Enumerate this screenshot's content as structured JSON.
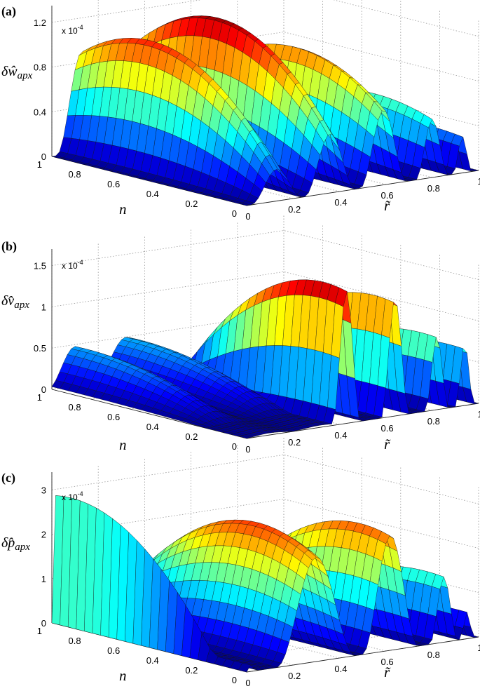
{
  "colormap": [
    "#00008f",
    "#0000ff",
    "#0080ff",
    "#00ffff",
    "#80ff80",
    "#ffff00",
    "#ff8000",
    "#ff0000",
    "#800000"
  ],
  "chart_data": [
    {
      "panel_label": "(a)",
      "type": "surface",
      "multiplier": "x 10",
      "multiplier_exp": "-4",
      "zlabel": "δŵ",
      "zlabel_sub": "apx",
      "xlabel": "r̃",
      "ylabel": "n",
      "xlim": [
        0,
        1
      ],
      "ylim": [
        0,
        1
      ],
      "zlim": [
        0,
        1.35
      ],
      "xticks": [
        "0",
        "0.2",
        "0.4",
        "0.6",
        "0.8",
        "1"
      ],
      "yticks": [
        "0",
        "0.2",
        "0.4",
        "0.6",
        "0.8",
        "1"
      ],
      "zticks": [
        "0",
        "0.4",
        "0.8",
        "1.2"
      ],
      "grid": true,
      "ridges": [
        {
          "r_center": 0.13,
          "r_width": 0.11,
          "peak": 1.15,
          "n_peak": 0.65
        },
        {
          "r_center": 0.36,
          "r_width": 0.11,
          "peak": 1.32,
          "n_peak": 0.58
        },
        {
          "r_center": 0.59,
          "r_width": 0.1,
          "peak": 1.05,
          "n_peak": 0.45
        },
        {
          "r_center": 0.8,
          "r_width": 0.07,
          "peak": 0.62,
          "n_peak": 0.3
        },
        {
          "r_center": 0.93,
          "r_width": 0.04,
          "peak": 0.35,
          "n_peak": 0.2
        }
      ]
    },
    {
      "panel_label": "(b)",
      "type": "surface",
      "multiplier": "x 10",
      "multiplier_exp": "-4",
      "zlabel": "δv̂",
      "zlabel_sub": "apx",
      "xlabel": "r̃",
      "ylabel": "n",
      "xlim": [
        0,
        1
      ],
      "ylim": [
        0,
        1
      ],
      "zlim": [
        0,
        1.7
      ],
      "xticks": [
        "0",
        "0.2",
        "0.4",
        "0.6",
        "0.8",
        "1"
      ],
      "yticks": [
        "0",
        "0.2",
        "0.4",
        "0.6",
        "0.8",
        "1"
      ],
      "zticks": [
        "0",
        "0.5",
        "1",
        "1.5"
      ],
      "grid": true,
      "ridges": [
        {
          "r_center": 0.1,
          "r_width": 0.12,
          "peak": 0.48,
          "n_peak": 0.95
        },
        {
          "r_center": 0.32,
          "r_width": 0.14,
          "peak": 0.5,
          "n_peak": 0.95
        },
        {
          "r_center": 0.43,
          "r_width": 0.06,
          "peak": 1.65,
          "n_peak": 0.12
        },
        {
          "r_center": 0.64,
          "r_width": 0.06,
          "peak": 1.45,
          "n_peak": 0.1
        },
        {
          "r_center": 0.82,
          "r_width": 0.05,
          "peak": 0.9,
          "n_peak": 0.08
        },
        {
          "r_center": 0.94,
          "r_width": 0.04,
          "peak": 0.75,
          "n_peak": 0.08
        }
      ]
    },
    {
      "panel_label": "(c)",
      "type": "surface",
      "multiplier": "x 10",
      "multiplier_exp": "-4",
      "zlabel": "δp̂",
      "zlabel_sub": "apx",
      "xlabel": "r̃",
      "ylabel": "n",
      "xlim": [
        0,
        1
      ],
      "ylim": [
        0,
        1
      ],
      "zlim": [
        0,
        3.4
      ],
      "xticks": [
        "0",
        "0.2",
        "0.4",
        "0.6",
        "0.8",
        "1"
      ],
      "yticks": [
        "0",
        "0.2",
        "0.4",
        "0.6",
        "0.8",
        "1"
      ],
      "zticks": [
        "0",
        "1",
        "2",
        "3"
      ],
      "grid": true,
      "ridges": [
        {
          "r_center": 0.02,
          "r_width": 0.02,
          "peak": 3.1,
          "n_peak": 0.92
        },
        {
          "r_center": 0.3,
          "r_width": 0.17,
          "peak": 2.8,
          "n_peak": 0.3
        },
        {
          "r_center": 0.62,
          "r_width": 0.12,
          "peak": 2.7,
          "n_peak": 0.15
        },
        {
          "r_center": 0.85,
          "r_width": 0.06,
          "peak": 1.5,
          "n_peak": 0.1
        },
        {
          "r_center": 0.95,
          "r_width": 0.03,
          "peak": 0.6,
          "n_peak": 0.05
        }
      ]
    }
  ]
}
